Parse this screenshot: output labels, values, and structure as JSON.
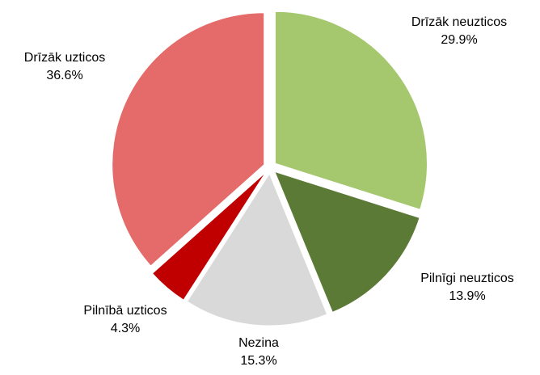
{
  "chart_data": {
    "type": "pie",
    "categories": [
      "Drīzāk neuzticos",
      "Pilnīgi neuzticos",
      "Nezina",
      "Pilnībā uzticos",
      "Drīzāk uzticos"
    ],
    "values": [
      29.9,
      13.9,
      15.3,
      4.3,
      36.6
    ],
    "value_labels": [
      "29.9%",
      "13.9%",
      "15.3%",
      "4.3%",
      "36.6%"
    ],
    "colors": [
      "#a5c76d",
      "#5b7a35",
      "#d9d9d9",
      "#c00000",
      "#e56a6a"
    ]
  }
}
